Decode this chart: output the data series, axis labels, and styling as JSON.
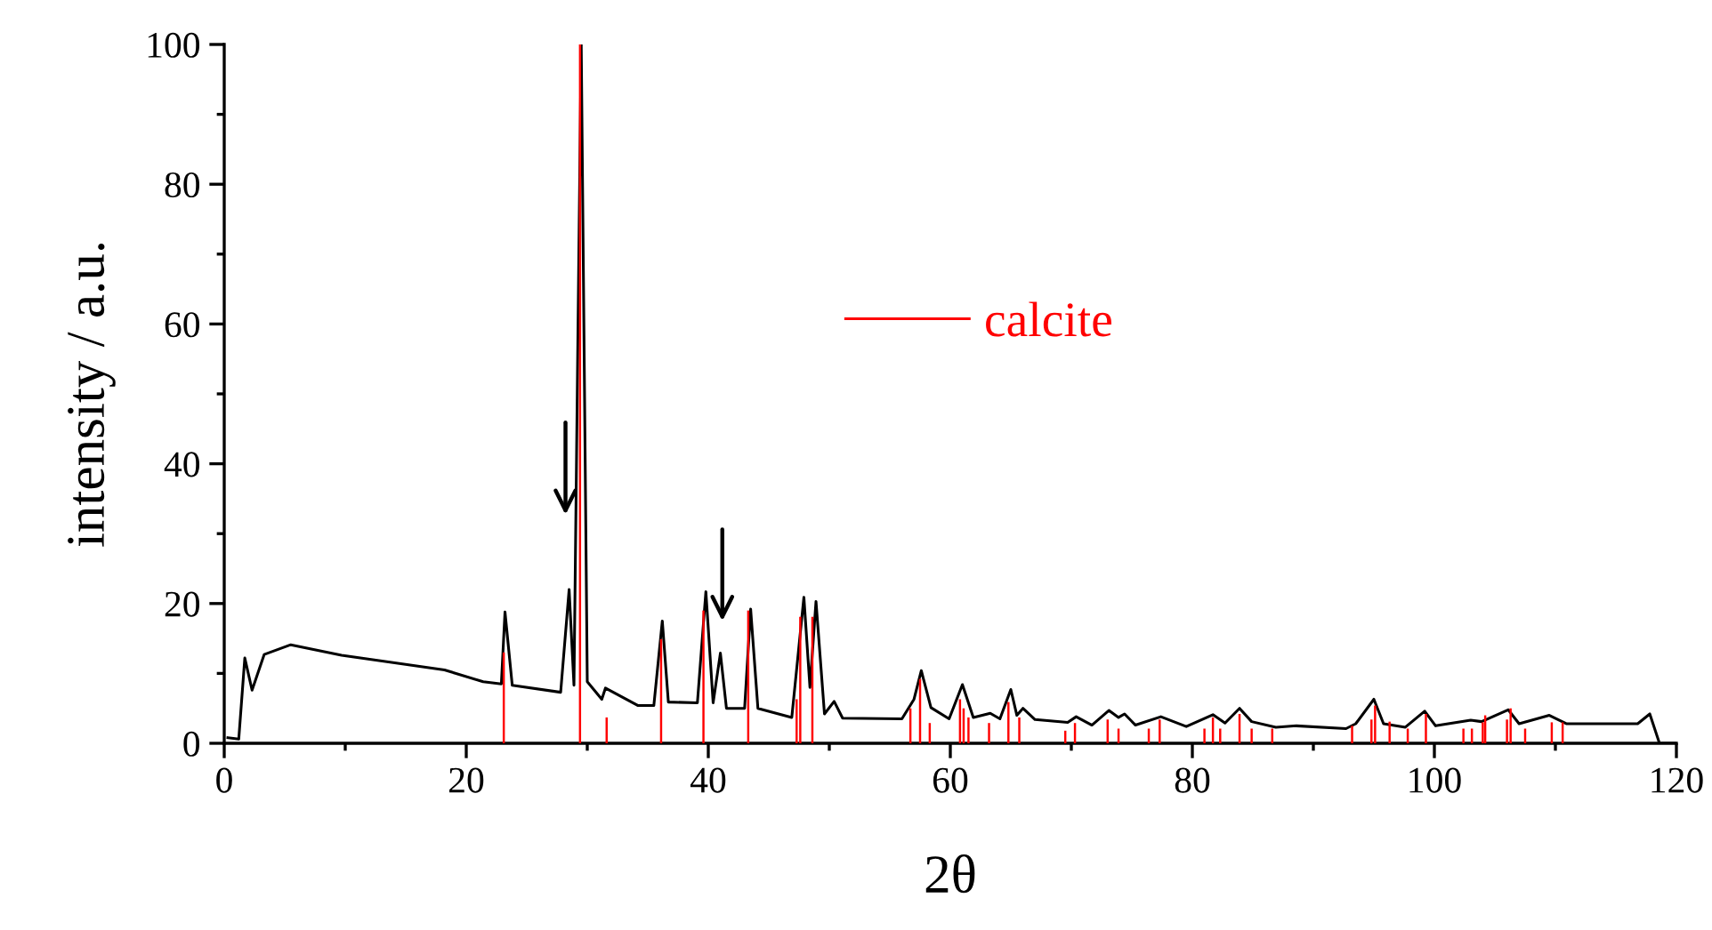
{
  "chart_data": {
    "type": "line",
    "xlabel": "2θ",
    "ylabel": "intensity / a.u.",
    "xlim": [
      0,
      120
    ],
    "xticks": [
      0,
      20,
      40,
      60,
      80,
      100,
      120
    ],
    "ylim": [
      0,
      100
    ],
    "yticks": [
      0,
      20,
      40,
      60,
      80,
      100
    ],
    "grid": false,
    "legend": "center",
    "marker": "none",
    "line_style": "solid",
    "series": [
      {
        "color": "#000000",
        "x": [
          0.3,
          1.2,
          1.7,
          2.3,
          3.3,
          5.5,
          9.7,
          14.6,
          18.2,
          21.4,
          22.9,
          23.2,
          23.8,
          27.8,
          28.5,
          28.9,
          29.5,
          30.0,
          31.2,
          31.5,
          34.2,
          35.5,
          36.2,
          36.7,
          39.1,
          39.8,
          40.4,
          41.0,
          41.5,
          43.0,
          43.5,
          44.1,
          46.9,
          47.9,
          48.4,
          48.9,
          49.6,
          50.4,
          51.1,
          56.0,
          57.0,
          57.6,
          58.4,
          59.9,
          61.0,
          61.9,
          63.3,
          64.1,
          65.0,
          65.5,
          66.0,
          67.0,
          69.7,
          70.4,
          71.7,
          73.1,
          73.9,
          74.4,
          75.3,
          77.4,
          79.5,
          81.7,
          82.7,
          83.9,
          84.9,
          86.9,
          88.6,
          92.7,
          93.5,
          95.0,
          95.8,
          97.6,
          99.2,
          100.1,
          103.0,
          103.9,
          106.1,
          107.0,
          109.5,
          110.9,
          116.8,
          117.8,
          118.6,
          119.9
        ],
        "values": [
          0.8,
          0.6,
          12.2,
          7.6,
          12.7,
          14.1,
          12.6,
          11.4,
          10.5,
          8.8,
          8.5,
          18.8,
          8.3,
          7.3,
          22.0,
          8.3,
          100,
          8.8,
          6.3,
          7.9,
          5.4,
          5.4,
          17.5,
          5.9,
          5.8,
          21.7,
          5.8,
          12.9,
          5.0,
          5.0,
          19.2,
          5.0,
          3.7,
          20.9,
          8.0,
          20.3,
          4.2,
          6.0,
          3.6,
          3.5,
          6.3,
          10.4,
          5.1,
          3.5,
          8.4,
          3.7,
          4.3,
          3.5,
          7.7,
          4.0,
          5.0,
          3.4,
          3.0,
          3.8,
          2.6,
          4.7,
          3.7,
          4.2,
          2.6,
          3.8,
          2.4,
          4.1,
          2.9,
          5.0,
          3.1,
          2.3,
          2.5,
          2.1,
          2.8,
          6.3,
          2.8,
          2.3,
          4.6,
          2.5,
          3.3,
          3.1,
          4.8,
          2.8,
          4.0,
          2.8,
          2.8,
          4.2,
          0,
          0
        ]
      },
      {
        "type": "bar",
        "name": "calcite",
        "color": "#ff0000",
        "x": [
          23.1,
          29.4,
          31.6,
          36.1,
          39.6,
          43.3,
          47.3,
          47.6,
          48.6,
          56.7,
          57.5,
          58.3,
          60.8,
          61.1,
          61.5,
          63.2,
          64.8,
          65.7,
          69.5,
          70.3,
          73.0,
          73.9,
          76.4,
          77.3,
          81.0,
          81.7,
          82.3,
          83.9,
          84.9,
          86.6,
          93.2,
          94.8,
          95.1,
          96.3,
          97.8,
          99.3,
          102.4,
          103.1,
          104.0,
          104.2,
          106.0,
          106.3,
          107.5,
          109.7,
          110.6
        ],
        "values": [
          13,
          100,
          3.7,
          14.9,
          19,
          19,
          6.3,
          18.1,
          18.1,
          5.0,
          9.2,
          2.9,
          6.3,
          5.0,
          3.7,
          2.9,
          5.9,
          3.7,
          1.8,
          2.9,
          3.4,
          2.1,
          2.1,
          3.4,
          2.1,
          3.7,
          2.1,
          4.2,
          2.1,
          2.1,
          2.5,
          3.4,
          5.4,
          3.1,
          2.1,
          4.2,
          2.1,
          2.1,
          3.0,
          4.0,
          3.4,
          5.0,
          2.1,
          3.0,
          3.0
        ]
      }
    ]
  }
}
